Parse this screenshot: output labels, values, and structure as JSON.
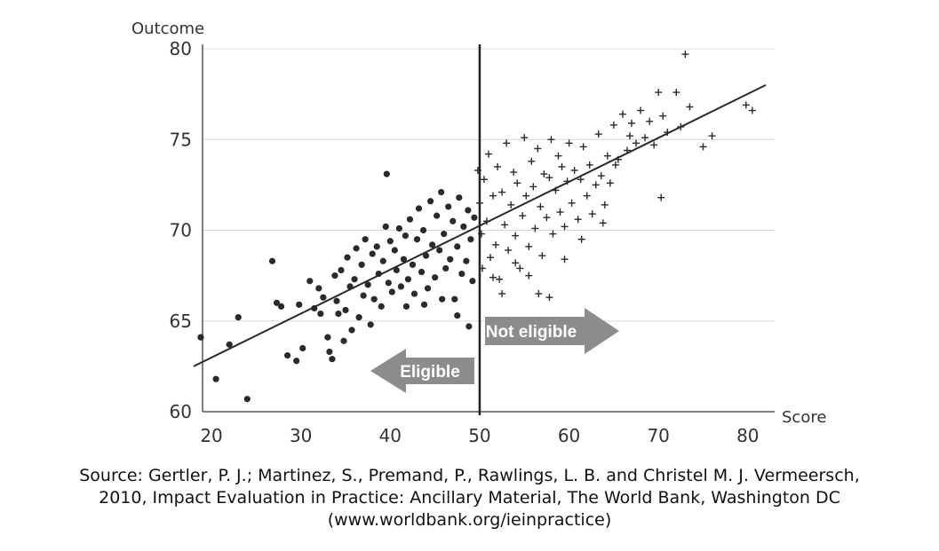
{
  "chart_data": {
    "type": "scatter",
    "xlabel": "Score",
    "ylabel": "Outcome",
    "xlim": [
      19,
      83
    ],
    "ylim": [
      60,
      80
    ],
    "x_ticks": [
      20,
      30,
      40,
      50,
      60,
      70,
      80
    ],
    "y_ticks": [
      60,
      65,
      70,
      75,
      80
    ],
    "grid": "horizontal",
    "cutoff": 50,
    "regression_line": {
      "x": [
        18,
        82
      ],
      "y": [
        62.5,
        78
      ]
    },
    "annotations": {
      "left_arrow": "Eligible",
      "right_arrow": "Not eligible"
    },
    "colors": {
      "eligible_points": "#2a2a2a",
      "not_eligible_points": "#2a2a2a",
      "regression_line": "#2a2a2a",
      "cutoff_line": "#222222",
      "arrows": "#8c8c8c",
      "grid": "#d9d9d9"
    },
    "series": [
      {
        "marker": "dot",
        "points": [
          [
            18.8,
            64.1
          ],
          [
            20.5,
            61.8
          ],
          [
            22,
            63.7
          ],
          [
            23,
            65.2
          ],
          [
            24,
            60.7
          ],
          [
            26.8,
            68.3
          ],
          [
            27.3,
            66
          ],
          [
            27.8,
            65.8
          ],
          [
            28.5,
            63.1
          ],
          [
            29.5,
            62.8
          ],
          [
            29.8,
            65.9
          ],
          [
            30.2,
            63.5
          ],
          [
            31,
            67.2
          ],
          [
            31.5,
            65.7
          ],
          [
            32,
            66.8
          ],
          [
            32.2,
            65.4
          ],
          [
            32.5,
            66.3
          ],
          [
            33,
            64.1
          ],
          [
            33.2,
            63.3
          ],
          [
            33.5,
            62.9
          ],
          [
            33.8,
            67.5
          ],
          [
            34,
            66.1
          ],
          [
            34.2,
            65.4
          ],
          [
            34.5,
            67.8
          ],
          [
            34.8,
            63.9
          ],
          [
            35,
            65.6
          ],
          [
            35.2,
            68.5
          ],
          [
            35.5,
            66.9
          ],
          [
            35.7,
            64.5
          ],
          [
            36,
            67.3
          ],
          [
            36.2,
            69
          ],
          [
            36.5,
            65.2
          ],
          [
            36.8,
            68.1
          ],
          [
            37,
            66.4
          ],
          [
            37.2,
            69.5
          ],
          [
            37.5,
            67
          ],
          [
            37.8,
            64.8
          ],
          [
            38,
            68.7
          ],
          [
            38.2,
            66.2
          ],
          [
            38.5,
            69.1
          ],
          [
            38.7,
            67.6
          ],
          [
            39,
            65.8
          ],
          [
            39.2,
            68.3
          ],
          [
            39.5,
            70.2
          ],
          [
            39.6,
            73.1
          ],
          [
            39.8,
            67.1
          ],
          [
            40,
            69.4
          ],
          [
            40.2,
            66.6
          ],
          [
            40.5,
            68.9
          ],
          [
            40.7,
            67.8
          ],
          [
            41,
            70.1
          ],
          [
            41.2,
            66.9
          ],
          [
            41.5,
            68.4
          ],
          [
            41.7,
            69.7
          ],
          [
            42,
            67.3
          ],
          [
            42.2,
            70.6
          ],
          [
            42.5,
            68.1
          ],
          [
            42.7,
            66.5
          ],
          [
            43,
            69.5
          ],
          [
            43.2,
            71.2
          ],
          [
            43.5,
            67.7
          ],
          [
            43.7,
            70
          ],
          [
            44,
            68.6
          ],
          [
            44.2,
            66.8
          ],
          [
            44.5,
            71.6
          ],
          [
            44.7,
            69.2
          ],
          [
            45,
            67.4
          ],
          [
            45.2,
            70.8
          ],
          [
            45.5,
            68.9
          ],
          [
            45.7,
            72.1
          ],
          [
            46,
            69.8
          ],
          [
            46.2,
            67.9
          ],
          [
            46.5,
            71.3
          ],
          [
            46.7,
            68.4
          ],
          [
            47,
            70.5
          ],
          [
            47.2,
            66.2
          ],
          [
            47.5,
            69.1
          ],
          [
            47.7,
            71.8
          ],
          [
            48,
            67.6
          ],
          [
            48.2,
            70.2
          ],
          [
            48.5,
            68.3
          ],
          [
            48.7,
            71.1
          ],
          [
            49,
            69.5
          ],
          [
            49.2,
            67.2
          ],
          [
            49.4,
            70.7
          ],
          [
            47.5,
            65.3
          ],
          [
            48.8,
            64.7
          ],
          [
            45.8,
            66.2
          ],
          [
            43.8,
            65.9
          ],
          [
            41.8,
            65.8
          ]
        ]
      },
      {
        "marker": "plus",
        "points": [
          [
            49.8,
            73.3
          ],
          [
            50,
            71.5
          ],
          [
            50.2,
            69.8
          ],
          [
            50.5,
            72.8
          ],
          [
            50.8,
            70.5
          ],
          [
            51,
            74.2
          ],
          [
            51.2,
            68.5
          ],
          [
            51.5,
            71.9
          ],
          [
            51.8,
            69.2
          ],
          [
            52,
            73.5
          ],
          [
            52.2,
            67.3
          ],
          [
            52.5,
            72.1
          ],
          [
            52.8,
            70.3
          ],
          [
            53,
            74.8
          ],
          [
            53.2,
            68.9
          ],
          [
            53.5,
            71.4
          ],
          [
            53.8,
            73.2
          ],
          [
            54,
            69.7
          ],
          [
            54.2,
            72.6
          ],
          [
            54.5,
            67.9
          ],
          [
            54.8,
            70.8
          ],
          [
            55,
            75.1
          ],
          [
            55.2,
            71.9
          ],
          [
            55.5,
            69.1
          ],
          [
            55.8,
            73.8
          ],
          [
            56,
            72.4
          ],
          [
            56.2,
            70.1
          ],
          [
            56.5,
            74.5
          ],
          [
            56.8,
            71.3
          ],
          [
            57,
            68.6
          ],
          [
            57.2,
            73.1
          ],
          [
            57.5,
            70.7
          ],
          [
            57.8,
            72.9
          ],
          [
            58,
            75
          ],
          [
            58.2,
            69.8
          ],
          [
            58.5,
            72.2
          ],
          [
            58.8,
            74.1
          ],
          [
            59,
            71
          ],
          [
            59.2,
            73.5
          ],
          [
            59.5,
            70.2
          ],
          [
            59.8,
            72.7
          ],
          [
            60,
            74.8
          ],
          [
            60.3,
            71.5
          ],
          [
            60.6,
            73.3
          ],
          [
            61,
            70.6
          ],
          [
            61.3,
            72.8
          ],
          [
            61.6,
            74.6
          ],
          [
            62,
            71.9
          ],
          [
            62.3,
            73.6
          ],
          [
            62.6,
            70.9
          ],
          [
            63,
            72.5
          ],
          [
            63.3,
            75.3
          ],
          [
            63.6,
            73
          ],
          [
            64,
            71.4
          ],
          [
            64.3,
            74.1
          ],
          [
            64.6,
            72.6
          ],
          [
            65,
            75.8
          ],
          [
            65.5,
            73.9
          ],
          [
            66,
            76.4
          ],
          [
            66.5,
            74.4
          ],
          [
            67,
            75.9
          ],
          [
            67.5,
            74.8
          ],
          [
            68,
            76.6
          ],
          [
            68.5,
            75.1
          ],
          [
            69,
            76
          ],
          [
            69.5,
            74.7
          ],
          [
            70,
            77.6
          ],
          [
            70.5,
            76.3
          ],
          [
            71,
            75.4
          ],
          [
            72,
            77.6
          ],
          [
            72.5,
            75.7
          ],
          [
            73,
            79.7
          ],
          [
            73.5,
            76.8
          ],
          [
            75,
            74.6
          ],
          [
            76,
            75.2
          ],
          [
            79.8,
            76.9
          ],
          [
            80.5,
            76.6
          ],
          [
            70.3,
            71.8
          ],
          [
            63.8,
            70.4
          ],
          [
            59.5,
            68.4
          ],
          [
            55.5,
            67.5
          ],
          [
            56.6,
            66.5
          ],
          [
            54,
            68.2
          ],
          [
            51.5,
            67.4
          ],
          [
            52.5,
            66.5
          ],
          [
            50.3,
            67.9
          ],
          [
            57.8,
            66.3
          ],
          [
            66.8,
            75.2
          ],
          [
            65.2,
            73.6
          ],
          [
            61.4,
            69.5
          ]
        ]
      }
    ]
  }
}
